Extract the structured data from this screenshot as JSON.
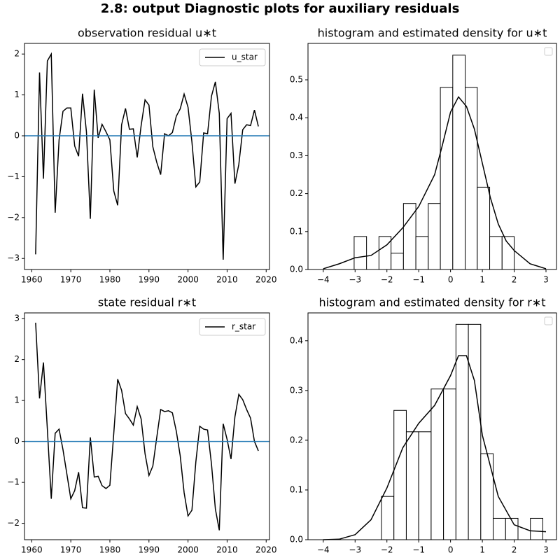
{
  "title": "2.8: output Diagnostic plots for auxiliary residuals",
  "chart_data": [
    {
      "type": "line",
      "title": "observation residual u∗t",
      "x": [
        1961,
        1962,
        1963,
        1964,
        1965,
        1966,
        1967,
        1968,
        1969,
        1970,
        1971,
        1972,
        1973,
        1974,
        1975,
        1976,
        1977,
        1978,
        1979,
        1980,
        1981,
        1982,
        1983,
        1984,
        1985,
        1986,
        1987,
        1988,
        1989,
        1990,
        1991,
        1992,
        1993,
        1994,
        1995,
        1996,
        1997,
        1998,
        1999,
        2000,
        2001,
        2002,
        2003,
        2004,
        2005,
        2006,
        2007,
        2008,
        2009,
        2010,
        2011,
        2012,
        2013,
        2014,
        2015,
        2016,
        2017,
        2018
      ],
      "series": [
        {
          "name": "u_star",
          "color": "#000000",
          "values": [
            -2.9,
            1.55,
            -1.05,
            1.83,
            2.0,
            -1.88,
            -0.1,
            0.6,
            0.68,
            0.68,
            -0.25,
            -0.5,
            1.03,
            0.1,
            -2.03,
            1.13,
            -0.05,
            0.28,
            0.1,
            -0.1,
            -1.35,
            -1.7,
            0.27,
            0.67,
            0.16,
            0.17,
            -0.53,
            0.25,
            0.88,
            0.75,
            -0.27,
            -0.65,
            -0.95,
            0.05,
            0.0,
            0.08,
            0.48,
            0.66,
            1.02,
            0.7,
            -0.15,
            -1.25,
            -1.13,
            0.07,
            0.05,
            0.97,
            1.32,
            0.55,
            -3.03,
            0.42,
            0.55,
            -1.17,
            -0.7,
            0.15,
            0.27,
            0.25,
            0.63,
            0.23
          ]
        }
      ],
      "hline": 0,
      "hline_color": "#1f77b4",
      "xlim": [
        1958.15,
        2020.85
      ],
      "ylim": [
        -3.27,
        2.26
      ],
      "xticks": [
        1960,
        1970,
        1980,
        1990,
        2000,
        2010,
        2020
      ],
      "yticks": [
        {
          "value": -3,
          "label": "−3"
        },
        {
          "value": -2,
          "label": "−2"
        },
        {
          "value": -1,
          "label": "−1"
        },
        0,
        1,
        2
      ],
      "legend": "upper right"
    },
    {
      "type": "histogram",
      "title": "histogram and estimated density for u∗t",
      "bins": [
        -3.03,
        -2.64,
        -2.25,
        -1.87,
        -1.48,
        -1.09,
        -0.7,
        -0.32,
        0.07,
        0.46,
        0.84,
        1.23,
        1.62,
        2.0
      ],
      "values": [
        0.087,
        0,
        0.087,
        0.043,
        0.174,
        0.087,
        0.174,
        0.48,
        0.565,
        0.48,
        0.217,
        0.087,
        0.087
      ],
      "color": "#ffffff",
      "edgecolor": "#000000",
      "density": {
        "color": "#000000",
        "x": [
          -4,
          -3.5,
          -3,
          -2.5,
          -2,
          -1.5,
          -1,
          -0.5,
          -0.25,
          0,
          0.25,
          0.5,
          0.75,
          1,
          1.25,
          1.5,
          1.75,
          2,
          2.5,
          3
        ],
        "y": [
          0.002,
          0.015,
          0.031,
          0.037,
          0.065,
          0.11,
          0.166,
          0.25,
          0.33,
          0.415,
          0.455,
          0.43,
          0.37,
          0.28,
          0.19,
          0.12,
          0.075,
          0.05,
          0.015,
          0.002
        ]
      },
      "xlim": [
        -4.48,
        3.33
      ],
      "ylim": [
        0,
        0.596
      ],
      "xticks": [
        {
          "value": -4,
          "label": "−4"
        },
        {
          "value": -3,
          "label": "−3"
        },
        {
          "value": -2,
          "label": "−2"
        },
        {
          "value": -1,
          "label": "−1"
        },
        0,
        1,
        2,
        3
      ],
      "yticks": [
        {
          "value": 0,
          "label": "0.0"
        },
        0.1,
        0.2,
        0.3,
        0.4,
        0.5
      ],
      "legend": "upper right"
    },
    {
      "type": "line",
      "title": "state residual r∗t",
      "x": [
        1961,
        1962,
        1963,
        1964,
        1965,
        1966,
        1967,
        1968,
        1969,
        1970,
        1971,
        1972,
        1973,
        1974,
        1975,
        1976,
        1977,
        1978,
        1979,
        1980,
        1981,
        1982,
        1983,
        1984,
        1985,
        1986,
        1987,
        1988,
        1989,
        1990,
        1991,
        1992,
        1993,
        1994,
        1995,
        1996,
        1997,
        1998,
        1999,
        2000,
        2001,
        2002,
        2003,
        2004,
        2005,
        2006,
        2007,
        2008,
        2009,
        2010,
        2011,
        2012,
        2013,
        2014,
        2015,
        2016,
        2017,
        2018
      ],
      "series": [
        {
          "name": "r_star",
          "color": "#000000",
          "values": [
            2.9,
            1.05,
            1.93,
            0.3,
            -1.4,
            0.2,
            0.3,
            -0.2,
            -0.8,
            -1.4,
            -1.2,
            -0.75,
            -1.62,
            -1.63,
            0.1,
            -0.87,
            -0.85,
            -1.08,
            -1.15,
            -1.07,
            0.2,
            1.52,
            1.25,
            0.68,
            0.55,
            0.4,
            0.85,
            0.55,
            -0.3,
            -0.83,
            -0.6,
            0.1,
            0.78,
            0.73,
            0.75,
            0.7,
            0.25,
            -0.35,
            -1.25,
            -1.82,
            -1.68,
            -0.5,
            0.37,
            0.3,
            0.28,
            -0.55,
            -1.65,
            -2.17,
            0.43,
            0.05,
            -0.43,
            0.6,
            1.15,
            1.02,
            0.78,
            0.57,
            0.0,
            -0.23
          ]
        }
      ],
      "hline": 0,
      "hline_color": "#1f77b4",
      "xlim": [
        1958.15,
        2020.85
      ],
      "ylim": [
        -2.4,
        3.14
      ],
      "xticks": [
        1960,
        1970,
        1980,
        1990,
        2000,
        2010,
        2020
      ],
      "yticks": [
        {
          "value": -2,
          "label": "−2"
        },
        {
          "value": -1,
          "label": "−1"
        },
        0,
        1,
        2,
        3
      ],
      "legend": "upper right"
    },
    {
      "type": "histogram",
      "title": "histogram and estimated density for r∗t",
      "bins": [
        -2.17,
        -1.78,
        -1.39,
        -1.0,
        -0.61,
        -0.22,
        0.17,
        0.56,
        0.95,
        1.34,
        1.73,
        2.12,
        2.51,
        2.9
      ],
      "values": [
        0.087,
        0.26,
        0.217,
        0.217,
        0.303,
        0.303,
        0.433,
        0.433,
        0.173,
        0.043,
        0.043,
        0,
        0.043
      ],
      "color": "#ffffff",
      "edgecolor": "#000000",
      "density": {
        "color": "#000000",
        "x": [
          -4,
          -3.5,
          -3,
          -2.5,
          -2,
          -1.5,
          -1,
          -0.5,
          0,
          0.25,
          0.5,
          0.75,
          1,
          1.5,
          2,
          2.5,
          3
        ],
        "y": [
          0,
          0.001,
          0.01,
          0.04,
          0.104,
          0.185,
          0.234,
          0.27,
          0.33,
          0.37,
          0.37,
          0.32,
          0.21,
          0.087,
          0.03,
          0.018,
          0.016
        ]
      },
      "xlim": [
        -4.48,
        3.33
      ],
      "ylim": [
        0,
        0.456
      ],
      "xticks": [
        {
          "value": -4,
          "label": "−4"
        },
        {
          "value": -3,
          "label": "−3"
        },
        {
          "value": -2,
          "label": "−2"
        },
        {
          "value": -1,
          "label": "−1"
        },
        0,
        1,
        2,
        3
      ],
      "yticks": [
        {
          "value": 0,
          "label": "0.0"
        },
        0.1,
        0.2,
        0.3,
        0.4
      ],
      "legend": "upper right"
    }
  ]
}
